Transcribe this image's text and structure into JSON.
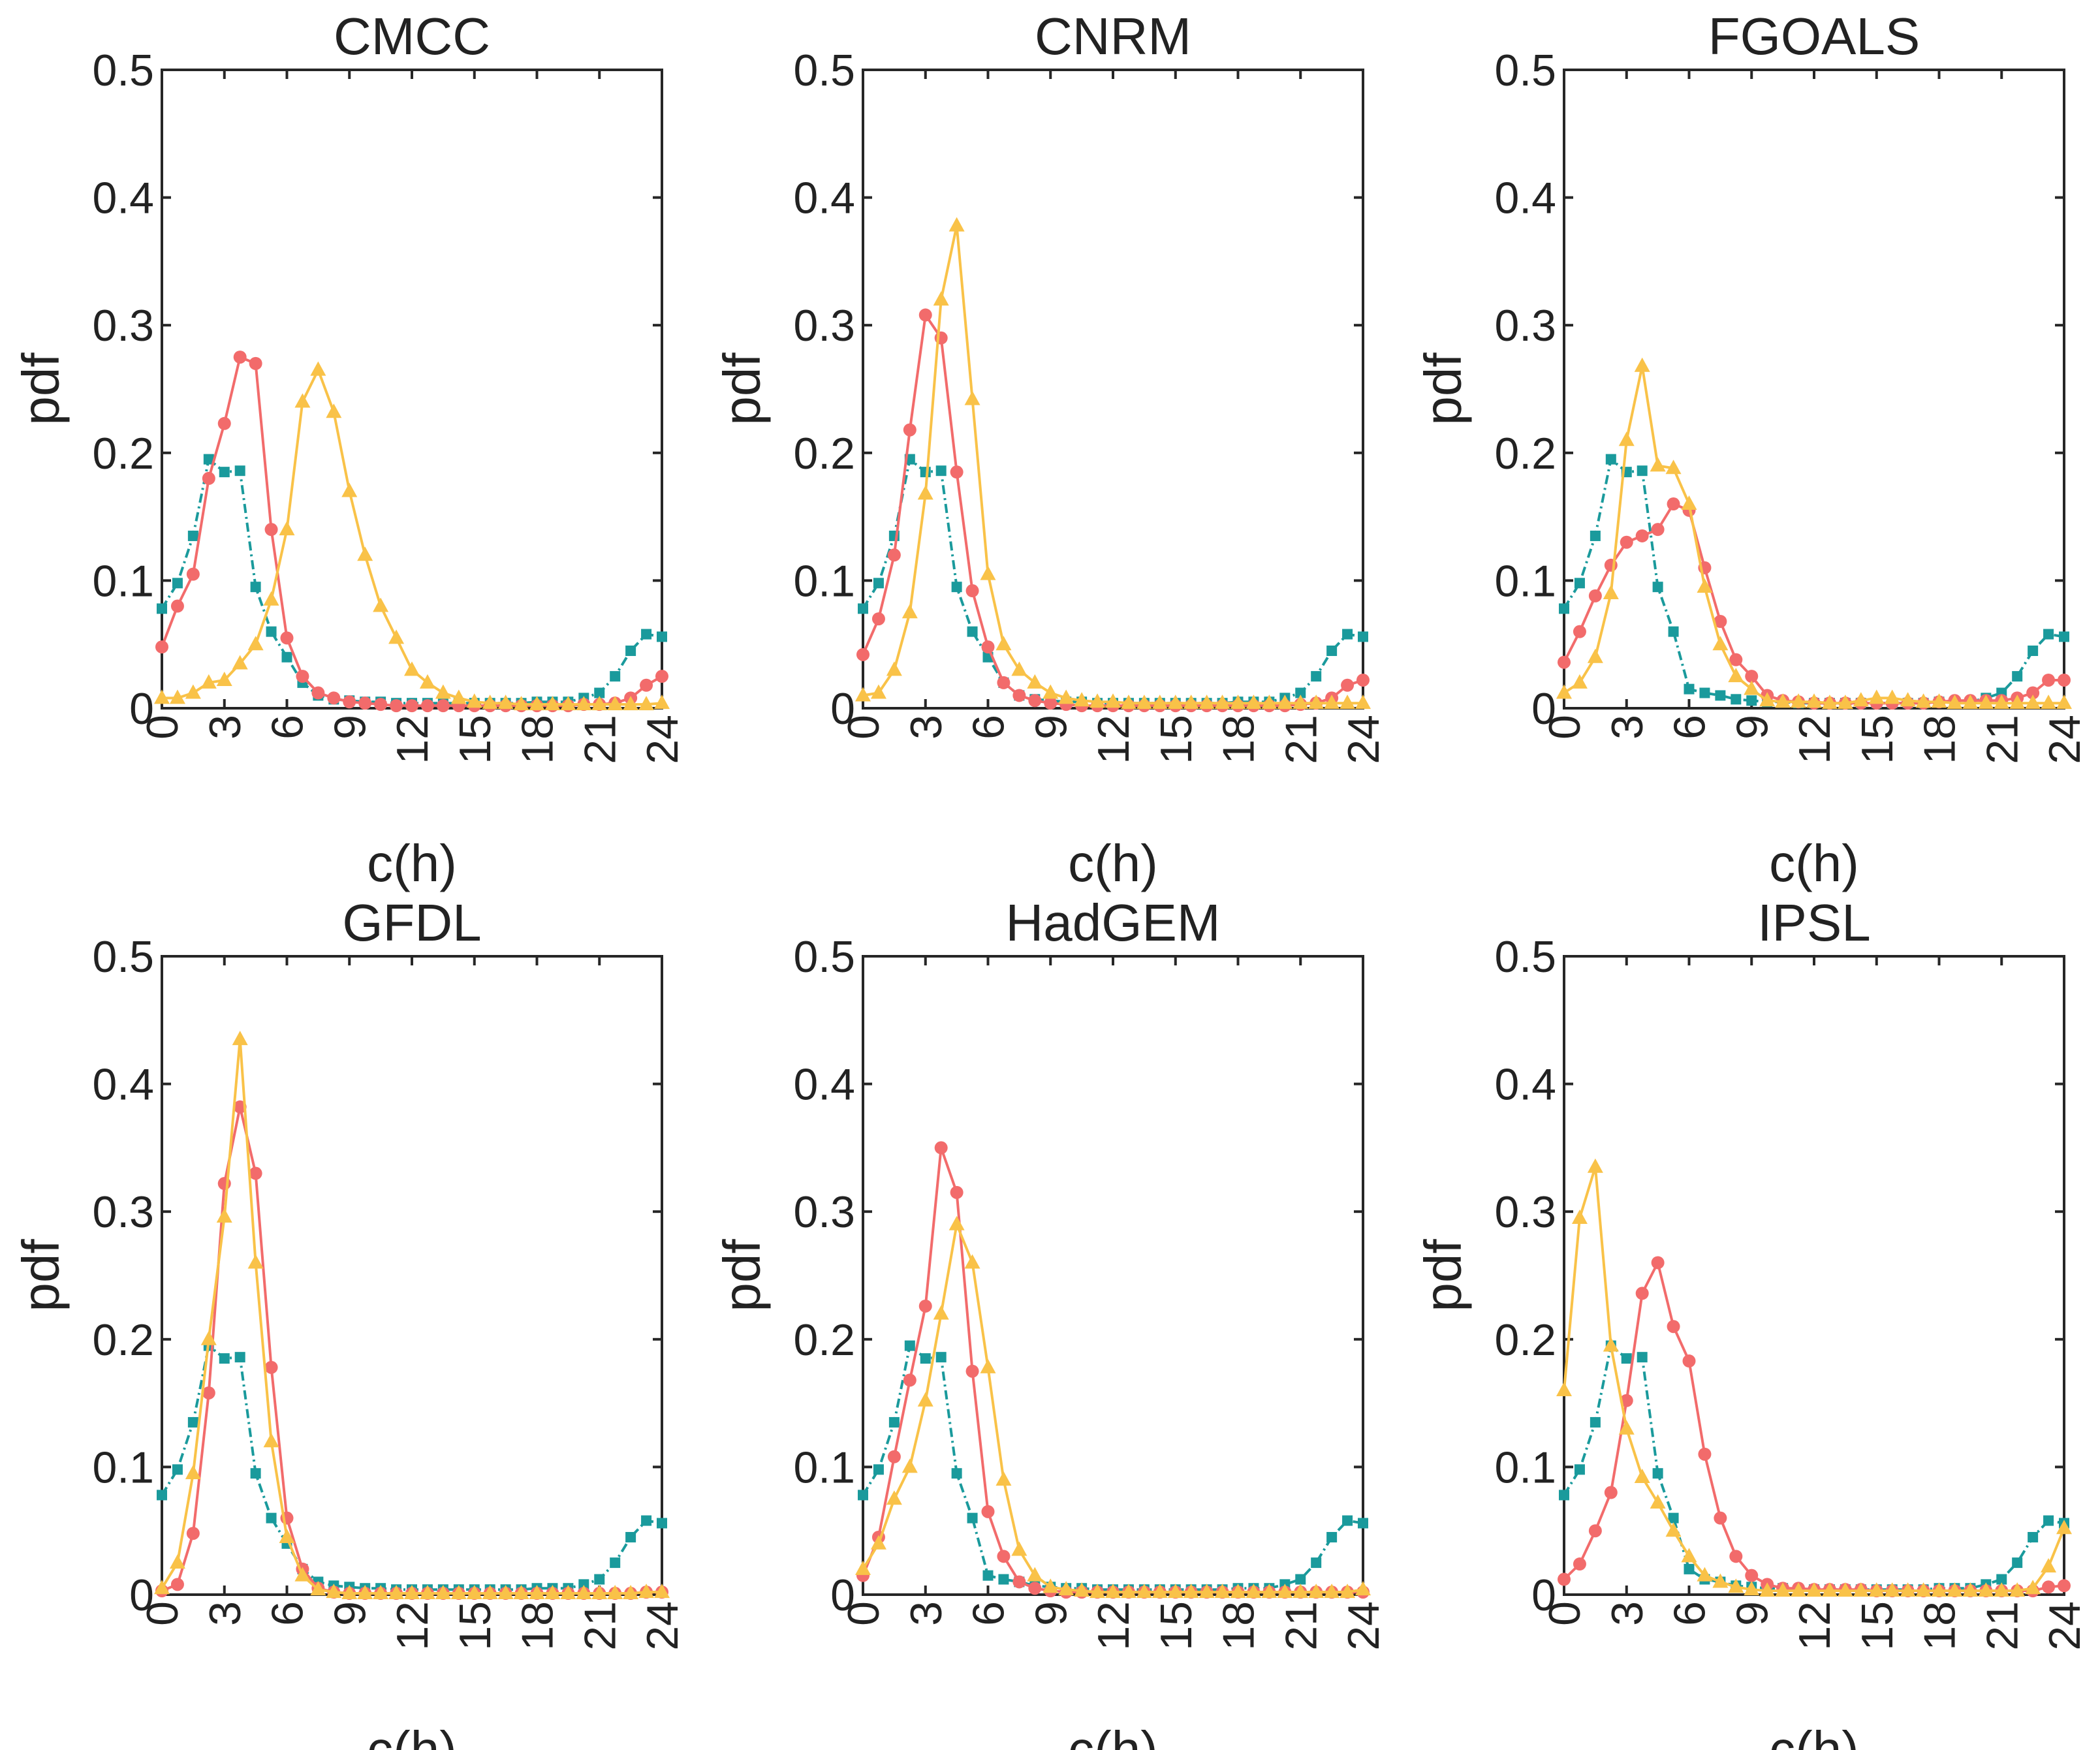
{
  "figure": {
    "description_id": "six-panel-pdf-figure"
  },
  "series_styles": [
    {
      "key": "obs",
      "color": "#1a9a9c",
      "marker": "square",
      "dashed": true
    },
    {
      "key": "red",
      "color": "#f26b6b",
      "marker": "circle",
      "dashed": false
    },
    {
      "key": "yellow",
      "color": "#f9c248",
      "marker": "triangle",
      "dashed": false
    }
  ],
  "chart_data": [
    {
      "type": "line",
      "title": "CMCC",
      "xlabel": "c(h)",
      "ylabel": "pdf",
      "xlim": [
        0,
        24
      ],
      "ylim": [
        0,
        0.5
      ],
      "xticks": [
        "0",
        "3",
        "6",
        "9",
        "12",
        "15",
        "18",
        "21",
        "24"
      ],
      "yticks": [
        "0",
        "0.1",
        "0.2",
        "0.3",
        "0.4",
        "0.5"
      ],
      "x": [
        0,
        0.75,
        1.5,
        2.25,
        3,
        3.75,
        4.5,
        5.25,
        6,
        6.75,
        7.5,
        8.25,
        9,
        9.75,
        10.5,
        11.25,
        12,
        12.75,
        13.5,
        14.25,
        15,
        15.75,
        16.5,
        17.25,
        18,
        18.75,
        19.5,
        20.25,
        21,
        21.75,
        22.5,
        23.25,
        24
      ],
      "series": [
        {
          "name": "obs",
          "values": [
            0.078,
            0.098,
            0.135,
            0.195,
            0.185,
            0.186,
            0.095,
            0.06,
            0.04,
            0.02,
            0.01,
            0.007,
            0.006,
            0.005,
            0.005,
            0.004,
            0.004,
            0.004,
            0.004,
            0.004,
            0.004,
            0.004,
            0.004,
            0.004,
            0.005,
            0.005,
            0.005,
            0.008,
            0.012,
            0.025,
            0.045,
            0.058,
            0.056
          ]
        },
        {
          "name": "red",
          "values": [
            0.048,
            0.08,
            0.105,
            0.18,
            0.223,
            0.275,
            0.27,
            0.14,
            0.055,
            0.025,
            0.012,
            0.008,
            0.005,
            0.004,
            0.003,
            0.002,
            0.002,
            0.002,
            0.002,
            0.002,
            0.002,
            0.002,
            0.002,
            0.002,
            0.002,
            0.002,
            0.002,
            0.003,
            0.003,
            0.004,
            0.008,
            0.018,
            0.025
          ]
        },
        {
          "name": "yellow",
          "values": [
            0.008,
            0.008,
            0.012,
            0.02,
            0.022,
            0.035,
            0.05,
            0.085,
            0.14,
            0.24,
            0.265,
            0.232,
            0.17,
            0.12,
            0.08,
            0.055,
            0.03,
            0.02,
            0.012,
            0.008,
            0.005,
            0.004,
            0.004,
            0.003,
            0.003,
            0.003,
            0.003,
            0.003,
            0.003,
            0.003,
            0.003,
            0.003,
            0.004
          ]
        }
      ]
    },
    {
      "type": "line",
      "title": "CNRM",
      "xlabel": "c(h)",
      "ylabel": "pdf",
      "xlim": [
        0,
        24
      ],
      "ylim": [
        0,
        0.5
      ],
      "xticks": [
        "0",
        "3",
        "6",
        "9",
        "12",
        "15",
        "18",
        "21",
        "24"
      ],
      "yticks": [
        "0",
        "0.1",
        "0.2",
        "0.3",
        "0.4",
        "0.5"
      ],
      "x": [
        0,
        0.75,
        1.5,
        2.25,
        3,
        3.75,
        4.5,
        5.25,
        6,
        6.75,
        7.5,
        8.25,
        9,
        9.75,
        10.5,
        11.25,
        12,
        12.75,
        13.5,
        14.25,
        15,
        15.75,
        16.5,
        17.25,
        18,
        18.75,
        19.5,
        20.25,
        21,
        21.75,
        22.5,
        23.25,
        24
      ],
      "series": [
        {
          "name": "obs",
          "values": [
            0.078,
            0.098,
            0.135,
            0.195,
            0.185,
            0.186,
            0.095,
            0.06,
            0.04,
            0.02,
            0.01,
            0.007,
            0.006,
            0.005,
            0.005,
            0.004,
            0.004,
            0.004,
            0.004,
            0.004,
            0.004,
            0.004,
            0.004,
            0.004,
            0.005,
            0.005,
            0.005,
            0.008,
            0.012,
            0.025,
            0.045,
            0.058,
            0.056
          ]
        },
        {
          "name": "red",
          "values": [
            0.042,
            0.07,
            0.12,
            0.218,
            0.308,
            0.29,
            0.185,
            0.092,
            0.048,
            0.02,
            0.01,
            0.006,
            0.004,
            0.003,
            0.002,
            0.002,
            0.002,
            0.002,
            0.002,
            0.002,
            0.002,
            0.002,
            0.002,
            0.002,
            0.002,
            0.002,
            0.002,
            0.002,
            0.003,
            0.004,
            0.008,
            0.018,
            0.022
          ]
        },
        {
          "name": "yellow",
          "values": [
            0.01,
            0.012,
            0.03,
            0.075,
            0.168,
            0.32,
            0.378,
            0.242,
            0.105,
            0.05,
            0.03,
            0.02,
            0.012,
            0.008,
            0.006,
            0.005,
            0.005,
            0.004,
            0.004,
            0.004,
            0.004,
            0.004,
            0.004,
            0.004,
            0.004,
            0.004,
            0.004,
            0.004,
            0.004,
            0.004,
            0.004,
            0.004,
            0.004
          ]
        }
      ]
    },
    {
      "type": "line",
      "title": "FGOALS",
      "xlabel": "c(h)",
      "ylabel": "pdf",
      "xlim": [
        0,
        24
      ],
      "ylim": [
        0,
        0.5
      ],
      "xticks": [
        "0",
        "3",
        "6",
        "9",
        "12",
        "15",
        "18",
        "21",
        "24"
      ],
      "yticks": [
        "0",
        "0.1",
        "0.2",
        "0.3",
        "0.4",
        "0.5"
      ],
      "x": [
        0,
        0.75,
        1.5,
        2.25,
        3,
        3.75,
        4.5,
        5.25,
        6,
        6.75,
        7.5,
        8.25,
        9,
        9.75,
        10.5,
        11.25,
        12,
        12.75,
        13.5,
        14.25,
        15,
        15.75,
        16.5,
        17.25,
        18,
        18.75,
        19.5,
        20.25,
        21,
        21.75,
        22.5,
        23.25,
        24
      ],
      "series": [
        {
          "name": "obs",
          "values": [
            0.078,
            0.098,
            0.135,
            0.195,
            0.185,
            0.186,
            0.095,
            0.06,
            0.015,
            0.012,
            0.01,
            0.007,
            0.006,
            0.005,
            0.005,
            0.004,
            0.004,
            0.004,
            0.004,
            0.004,
            0.004,
            0.004,
            0.004,
            0.004,
            0.005,
            0.005,
            0.005,
            0.008,
            0.012,
            0.025,
            0.045,
            0.058,
            0.056
          ]
        },
        {
          "name": "red",
          "values": [
            0.036,
            0.06,
            0.088,
            0.112,
            0.13,
            0.135,
            0.14,
            0.16,
            0.155,
            0.11,
            0.068,
            0.038,
            0.025,
            0.01,
            0.006,
            0.005,
            0.004,
            0.004,
            0.004,
            0.004,
            0.004,
            0.004,
            0.004,
            0.004,
            0.005,
            0.006,
            0.006,
            0.006,
            0.006,
            0.008,
            0.012,
            0.022,
            0.022
          ]
        },
        {
          "name": "yellow",
          "values": [
            0.012,
            0.02,
            0.04,
            0.09,
            0.21,
            0.268,
            0.19,
            0.188,
            0.16,
            0.095,
            0.05,
            0.025,
            0.015,
            0.006,
            0.005,
            0.005,
            0.005,
            0.004,
            0.004,
            0.006,
            0.008,
            0.008,
            0.006,
            0.005,
            0.005,
            0.004,
            0.004,
            0.004,
            0.004,
            0.004,
            0.004,
            0.004,
            0.004
          ]
        }
      ]
    },
    {
      "type": "line",
      "title": "GFDL",
      "xlabel": "c(h)",
      "ylabel": "pdf",
      "xlim": [
        0,
        24
      ],
      "ylim": [
        0,
        0.5
      ],
      "xticks": [
        "0",
        "3",
        "6",
        "9",
        "12",
        "15",
        "18",
        "21",
        "24"
      ],
      "yticks": [
        "0",
        "0.1",
        "0.2",
        "0.3",
        "0.4",
        "0.5"
      ],
      "x": [
        0,
        0.75,
        1.5,
        2.25,
        3,
        3.75,
        4.5,
        5.25,
        6,
        6.75,
        7.5,
        8.25,
        9,
        9.75,
        10.5,
        11.25,
        12,
        12.75,
        13.5,
        14.25,
        15,
        15.75,
        16.5,
        17.25,
        18,
        18.75,
        19.5,
        20.25,
        21,
        21.75,
        22.5,
        23.25,
        24
      ],
      "series": [
        {
          "name": "obs",
          "values": [
            0.078,
            0.098,
            0.135,
            0.195,
            0.185,
            0.186,
            0.095,
            0.06,
            0.04,
            0.02,
            0.01,
            0.007,
            0.006,
            0.005,
            0.005,
            0.004,
            0.004,
            0.004,
            0.004,
            0.004,
            0.004,
            0.004,
            0.004,
            0.004,
            0.005,
            0.005,
            0.005,
            0.008,
            0.012,
            0.025,
            0.045,
            0.058,
            0.056
          ]
        },
        {
          "name": "red",
          "values": [
            0.003,
            0.008,
            0.048,
            0.158,
            0.322,
            0.382,
            0.33,
            0.178,
            0.06,
            0.02,
            0.005,
            0.002,
            0.001,
            0.001,
            0.001,
            0.001,
            0.001,
            0.001,
            0.001,
            0.001,
            0.001,
            0.001,
            0.001,
            0.001,
            0.001,
            0.001,
            0.001,
            0.001,
            0.001,
            0.001,
            0.001,
            0.002,
            0.002
          ]
        },
        {
          "name": "yellow",
          "values": [
            0.005,
            0.025,
            0.095,
            0.2,
            0.296,
            0.435,
            0.26,
            0.12,
            0.045,
            0.015,
            0.004,
            0.002,
            0.001,
            0.001,
            0.001,
            0.001,
            0.001,
            0.001,
            0.001,
            0.001,
            0.001,
            0.001,
            0.001,
            0.001,
            0.001,
            0.001,
            0.001,
            0.001,
            0.001,
            0.001,
            0.001,
            0.002,
            0.002
          ]
        }
      ]
    },
    {
      "type": "line",
      "title": "HadGEM",
      "xlabel": "c(h)",
      "ylabel": "pdf",
      "xlim": [
        0,
        24
      ],
      "ylim": [
        0,
        0.5
      ],
      "xticks": [
        "0",
        "3",
        "6",
        "9",
        "12",
        "15",
        "18",
        "21",
        "24"
      ],
      "yticks": [
        "0",
        "0.1",
        "0.2",
        "0.3",
        "0.4",
        "0.5"
      ],
      "x": [
        0,
        0.75,
        1.5,
        2.25,
        3,
        3.75,
        4.5,
        5.25,
        6,
        6.75,
        7.5,
        8.25,
        9,
        9.75,
        10.5,
        11.25,
        12,
        12.75,
        13.5,
        14.25,
        15,
        15.75,
        16.5,
        17.25,
        18,
        18.75,
        19.5,
        20.25,
        21,
        21.75,
        22.5,
        23.25,
        24
      ],
      "series": [
        {
          "name": "obs",
          "values": [
            0.078,
            0.098,
            0.135,
            0.195,
            0.185,
            0.186,
            0.095,
            0.06,
            0.015,
            0.012,
            0.01,
            0.007,
            0.006,
            0.005,
            0.005,
            0.004,
            0.004,
            0.004,
            0.004,
            0.004,
            0.004,
            0.004,
            0.004,
            0.004,
            0.005,
            0.005,
            0.005,
            0.008,
            0.012,
            0.025,
            0.045,
            0.058,
            0.056
          ]
        },
        {
          "name": "red",
          "values": [
            0.015,
            0.045,
            0.108,
            0.168,
            0.226,
            0.35,
            0.315,
            0.175,
            0.065,
            0.03,
            0.01,
            0.005,
            0.003,
            0.002,
            0.002,
            0.002,
            0.002,
            0.002,
            0.002,
            0.002,
            0.002,
            0.002,
            0.002,
            0.002,
            0.002,
            0.002,
            0.002,
            0.002,
            0.002,
            0.002,
            0.002,
            0.002,
            0.002
          ]
        },
        {
          "name": "yellow",
          "values": [
            0.02,
            0.04,
            0.075,
            0.1,
            0.152,
            0.22,
            0.29,
            0.26,
            0.178,
            0.09,
            0.035,
            0.015,
            0.006,
            0.004,
            0.003,
            0.002,
            0.002,
            0.002,
            0.002,
            0.002,
            0.002,
            0.002,
            0.002,
            0.002,
            0.002,
            0.002,
            0.002,
            0.002,
            0.002,
            0.002,
            0.002,
            0.002,
            0.004
          ]
        }
      ]
    },
    {
      "type": "line",
      "title": "IPSL",
      "xlabel": "c(h)",
      "ylabel": "pdf",
      "xlim": [
        0,
        24
      ],
      "ylim": [
        0,
        0.5
      ],
      "xticks": [
        "0",
        "3",
        "6",
        "9",
        "12",
        "15",
        "18",
        "21",
        "24"
      ],
      "yticks": [
        "0",
        "0.1",
        "0.2",
        "0.3",
        "0.4",
        "0.5"
      ],
      "x": [
        0,
        0.75,
        1.5,
        2.25,
        3,
        3.75,
        4.5,
        5.25,
        6,
        6.75,
        7.5,
        8.25,
        9,
        9.75,
        10.5,
        11.25,
        12,
        12.75,
        13.5,
        14.25,
        15,
        15.75,
        16.5,
        17.25,
        18,
        18.75,
        19.5,
        20.25,
        21,
        21.75,
        22.5,
        23.25,
        24
      ],
      "series": [
        {
          "name": "obs",
          "values": [
            0.078,
            0.098,
            0.135,
            0.195,
            0.185,
            0.186,
            0.095,
            0.06,
            0.02,
            0.012,
            0.01,
            0.007,
            0.006,
            0.005,
            0.005,
            0.004,
            0.004,
            0.004,
            0.004,
            0.004,
            0.004,
            0.004,
            0.004,
            0.004,
            0.005,
            0.005,
            0.005,
            0.008,
            0.012,
            0.025,
            0.045,
            0.058,
            0.056
          ]
        },
        {
          "name": "red",
          "values": [
            0.012,
            0.024,
            0.05,
            0.08,
            0.152,
            0.236,
            0.26,
            0.21,
            0.183,
            0.11,
            0.06,
            0.03,
            0.015,
            0.008,
            0.005,
            0.005,
            0.004,
            0.004,
            0.004,
            0.004,
            0.003,
            0.003,
            0.003,
            0.003,
            0.003,
            0.003,
            0.003,
            0.003,
            0.003,
            0.003,
            0.003,
            0.006,
            0.007
          ]
        },
        {
          "name": "yellow",
          "values": [
            0.16,
            0.295,
            0.335,
            0.195,
            0.13,
            0.092,
            0.072,
            0.05,
            0.03,
            0.015,
            0.01,
            0.006,
            0.004,
            0.003,
            0.003,
            0.003,
            0.003,
            0.003,
            0.003,
            0.003,
            0.003,
            0.003,
            0.003,
            0.003,
            0.003,
            0.003,
            0.003,
            0.003,
            0.003,
            0.003,
            0.005,
            0.022,
            0.052
          ]
        }
      ]
    }
  ]
}
